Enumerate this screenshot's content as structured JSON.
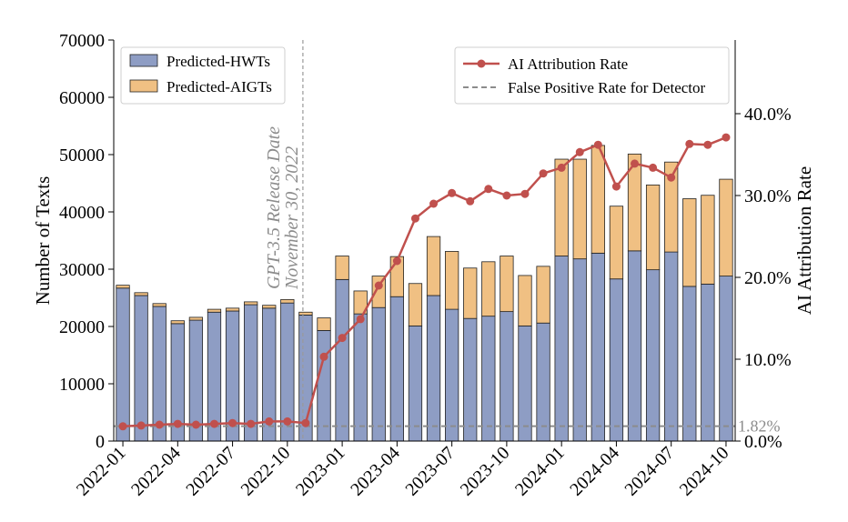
{
  "chart_data": {
    "type": "bar",
    "ylabel": "Number of Texts",
    "y2label": "AI Attribution Rate",
    "ylim": [
      0,
      70000
    ],
    "yticks": [
      0,
      10000,
      20000,
      30000,
      40000,
      50000,
      60000,
      70000
    ],
    "y2lim": [
      0,
      0.49
    ],
    "y2ticks": [
      0.0,
      0.1,
      0.2,
      0.3,
      0.4
    ],
    "y2tick_labels": [
      "0.0%",
      "10.0%",
      "20.0%",
      "30.0%",
      "40.0%"
    ],
    "x": [
      "2022-01",
      "2022-02",
      "2022-03",
      "2022-04",
      "2022-05",
      "2022-06",
      "2022-07",
      "2022-08",
      "2022-09",
      "2022-10",
      "2022-11",
      "2022-12",
      "2023-01",
      "2023-02",
      "2023-03",
      "2023-04",
      "2023-05",
      "2023-06",
      "2023-07",
      "2023-08",
      "2023-09",
      "2023-10",
      "2023-11",
      "2023-12",
      "2024-01",
      "2024-02",
      "2024-03",
      "2024-04",
      "2024-05",
      "2024-06",
      "2024-07",
      "2024-08",
      "2024-09",
      "2024-10"
    ],
    "xtick_labels": [
      "2022-01",
      "2022-04",
      "2022-07",
      "2022-10",
      "2023-01",
      "2023-04",
      "2023-07",
      "2023-10",
      "2024-01",
      "2024-04",
      "2024-07",
      "2024-10"
    ],
    "series": [
      {
        "name": "Predicted-HWTs",
        "color": "#8e9dc4",
        "values": [
          26700,
          25400,
          23500,
          20500,
          21100,
          22500,
          22700,
          23800,
          23200,
          24100,
          22000,
          19300,
          28200,
          22200,
          23300,
          25200,
          20100,
          25400,
          23000,
          21400,
          21800,
          22600,
          20100,
          20600,
          32300,
          31800,
          32800,
          28300,
          33200,
          29900,
          33000,
          27000,
          27400,
          28800
        ]
      },
      {
        "name": "Predicted-AIGTs",
        "color": "#f0c083",
        "values": [
          500,
          500,
          500,
          500,
          500,
          500,
          500,
          500,
          500,
          600,
          500,
          2200,
          4100,
          4000,
          5500,
          7000,
          7400,
          10300,
          10100,
          8800,
          9500,
          9700,
          8800,
          9900,
          16900,
          17400,
          18800,
          12700,
          16900,
          14800,
          15700,
          15300,
          15500,
          16900
        ]
      },
      {
        "name": "AI Attribution Rate",
        "color": "#c0504d",
        "axis": "right",
        "values": [
          0.018,
          0.019,
          0.02,
          0.021,
          0.02,
          0.021,
          0.022,
          0.021,
          0.024,
          0.024,
          0.022,
          0.103,
          0.126,
          0.149,
          0.19,
          0.22,
          0.272,
          0.29,
          0.303,
          0.293,
          0.308,
          0.3,
          0.302,
          0.327,
          0.334,
          0.353,
          0.362,
          0.311,
          0.339,
          0.334,
          0.322,
          0.363,
          0.362,
          0.371
        ]
      }
    ],
    "reference_lines": [
      {
        "name": "False Positive Rate for Detector",
        "value": 0.0182,
        "axis": "right",
        "label": "1.82%",
        "color": "#8c8c8c"
      }
    ],
    "annotation": {
      "at": "2022-11",
      "line1": "GPT-3.5 Release Date",
      "line2": "November 30, 2022"
    },
    "legends": {
      "bars": {
        "placement": "top-left",
        "items": [
          "Predicted-HWTs",
          "Predicted-AIGTs"
        ]
      },
      "lines": {
        "placement": "top-right",
        "items": [
          "AI Attribution Rate",
          "False Positive Rate for Detector"
        ]
      }
    }
  }
}
